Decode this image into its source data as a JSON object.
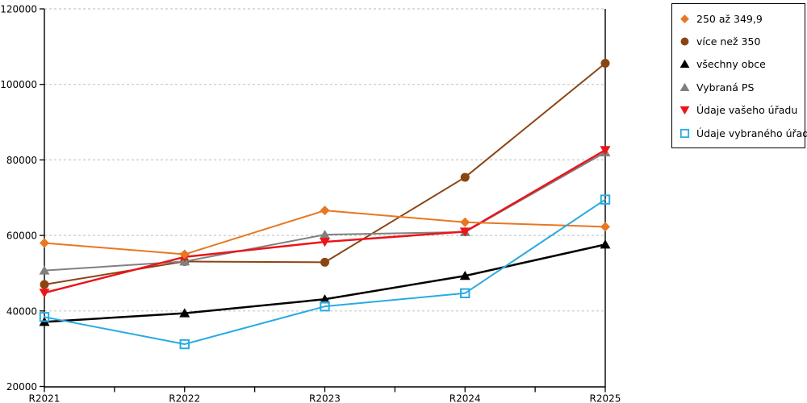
{
  "chart_data": {
    "type": "line",
    "title": "",
    "xlabel": "",
    "ylabel": "",
    "categories": [
      "R2021",
      "R2022",
      "R2023",
      "R2024",
      "R2025"
    ],
    "series": [
      {
        "name": "250 až 349,9",
        "marker": "diamond",
        "color": "#E87722",
        "line_width": 2,
        "values": [
          58000,
          55000,
          66600,
          63500,
          62300
        ]
      },
      {
        "name": "více než 350",
        "marker": "circle",
        "color": "#8B4513",
        "line_width": 2,
        "values": [
          47000,
          53100,
          52900,
          75400,
          105600
        ]
      },
      {
        "name": "všechny obce",
        "marker": "triangle-up",
        "color": "#000000",
        "line_width": 2.5,
        "values": [
          37100,
          39400,
          43100,
          49300,
          57600
        ]
      },
      {
        "name": "Vybraná PS",
        "marker": "triangle-up",
        "color": "#808080",
        "line_width": 2,
        "values": [
          50700,
          53100,
          60200,
          60900,
          82000
        ]
      },
      {
        "name": "Údaje vašeho úřadu",
        "marker": "triangle-down",
        "color": "#EB1419",
        "line_width": 2.5,
        "values": [
          44800,
          54300,
          58300,
          61000,
          82600
        ]
      },
      {
        "name": "Údaje vybraného úřadu",
        "marker": "square-open",
        "color": "#29ABE2",
        "line_width": 2,
        "values": [
          38400,
          31200,
          41200,
          44700,
          69500
        ]
      }
    ],
    "ylim": [
      20000,
      120000
    ],
    "ytick_step": 20000,
    "ytick_labels": [
      "20000",
      "40000",
      "60000",
      "80000",
      "100000",
      "120000"
    ],
    "grid": "dashed-horizontal",
    "grid_color": "#C8C8C8",
    "axis_color": "#000000",
    "legend_position": "right"
  }
}
